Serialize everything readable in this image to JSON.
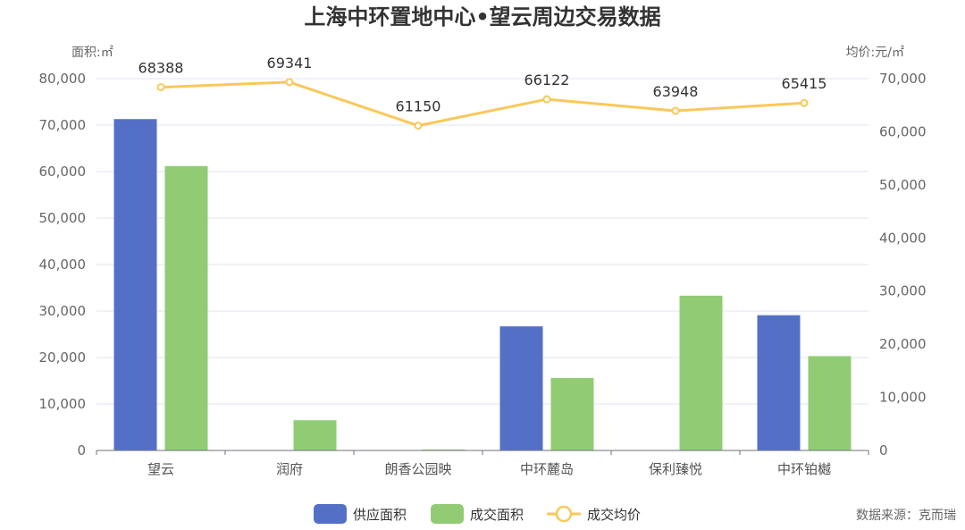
{
  "chart_data": {
    "type": "bar",
    "title": "上海中环置地中心•望云周边交易数据",
    "left_axis_label": "面积:㎡",
    "right_axis_label": "均价:元/㎡",
    "categories": [
      "望云",
      "润府",
      "朗香公园映",
      "中环麓岛",
      "保利臻悦",
      "中环铂樾"
    ],
    "series": [
      {
        "name": "供应面积",
        "type": "bar",
        "axis": "left",
        "color": "#5470c6",
        "values": [
          71300,
          null,
          null,
          26700,
          null,
          29100
        ]
      },
      {
        "name": "成交面积",
        "type": "bar",
        "axis": "left",
        "color": "#91cc75",
        "values": [
          61200,
          6500,
          200,
          15600,
          33300,
          20300
        ]
      },
      {
        "name": "成交均价",
        "type": "line",
        "axis": "right",
        "color": "#fac858",
        "values": [
          68388,
          69341,
          61150,
          66122,
          63948,
          65415
        ]
      }
    ],
    "ylim_left": [
      0,
      80000
    ],
    "ylim_right": [
      0,
      70000
    ],
    "yticks_left": [
      "0",
      "10,000",
      "20,000",
      "30,000",
      "40,000",
      "50,000",
      "60,000",
      "70,000",
      "80,000"
    ],
    "yticks_right": [
      "0",
      "10,000",
      "20,000",
      "30,000",
      "40,000",
      "50,000",
      "60,000",
      "70,000"
    ],
    "grid": true,
    "legend_position": "bottom-center",
    "source": "数据来源：克而瑞"
  }
}
